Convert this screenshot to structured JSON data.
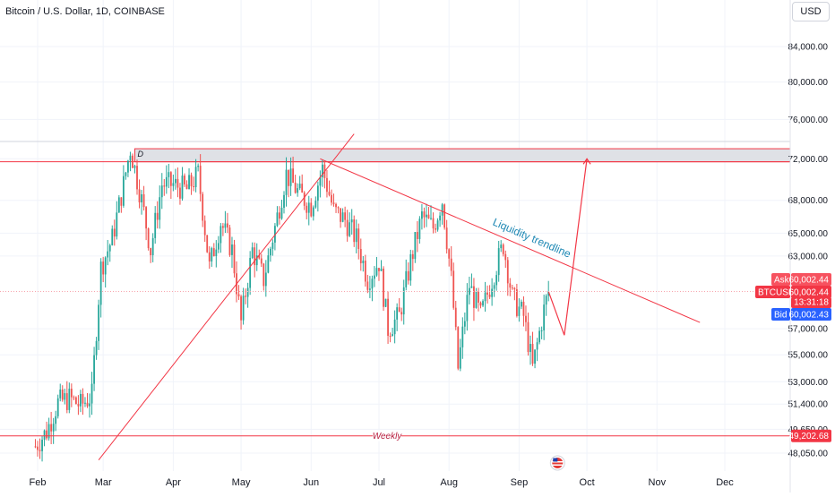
{
  "header": {
    "title": "Bitcoin / U.S. Dollar, 1D, COINBASE",
    "currency": "USD"
  },
  "chart_data": {
    "type": "candlestick",
    "title": "Bitcoin / U.S. Dollar, 1D, COINBASE",
    "ylim": [
      47500,
      86500
    ],
    "y_scale": "log",
    "y_ticks": [
      "84,000.00",
      "80,000.00",
      "76,000.00",
      "72,000.00",
      "68,000.00",
      "65,000.00",
      "63,000.00",
      "57,000.00",
      "55,000.00",
      "53,000.00",
      "51,400.00",
      "49,650.00",
      "48,050.00"
    ],
    "x_ticks": [
      "Feb",
      "Mar",
      "Apr",
      "May",
      "Jun",
      "Jul",
      "Aug",
      "Sep",
      "Oct",
      "Nov",
      "Dec"
    ],
    "closes": [
      {
        "date": "2024-01-31",
        "close": 48500
      },
      {
        "date": "2024-02-05",
        "close": 49500
      },
      {
        "date": "2024-02-10",
        "close": 51500
      },
      {
        "date": "2024-02-15",
        "close": 51800
      },
      {
        "date": "2024-02-20",
        "close": 51300
      },
      {
        "date": "2024-02-25",
        "close": 52000
      },
      {
        "date": "2024-02-29",
        "close": 62000
      },
      {
        "date": "2024-03-05",
        "close": 64500
      },
      {
        "date": "2024-03-10",
        "close": 69500
      },
      {
        "date": "2024-03-13",
        "close": 73000
      },
      {
        "date": "2024-03-18",
        "close": 68000
      },
      {
        "date": "2024-03-22",
        "close": 63500
      },
      {
        "date": "2024-03-27",
        "close": 69500
      },
      {
        "date": "2024-04-01",
        "close": 69500
      },
      {
        "date": "2024-04-07",
        "close": 69000
      },
      {
        "date": "2024-04-12",
        "close": 70500
      },
      {
        "date": "2024-04-17",
        "close": 62000
      },
      {
        "date": "2024-04-22",
        "close": 66000
      },
      {
        "date": "2024-04-27",
        "close": 63500
      },
      {
        "date": "2024-05-01",
        "close": 57500
      },
      {
        "date": "2024-05-06",
        "close": 63500
      },
      {
        "date": "2024-05-11",
        "close": 61000
      },
      {
        "date": "2024-05-16",
        "close": 65500
      },
      {
        "date": "2024-05-21",
        "close": 70500
      },
      {
        "date": "2024-05-27",
        "close": 68500
      },
      {
        "date": "2024-06-01",
        "close": 67500
      },
      {
        "date": "2024-06-06",
        "close": 71000
      },
      {
        "date": "2024-06-11",
        "close": 67000
      },
      {
        "date": "2024-06-16",
        "close": 66200
      },
      {
        "date": "2024-06-21",
        "close": 64500
      },
      {
        "date": "2024-06-26",
        "close": 61000
      },
      {
        "date": "2024-07-01",
        "close": 62500
      },
      {
        "date": "2024-07-05",
        "close": 57000
      },
      {
        "date": "2024-07-10",
        "close": 58000
      },
      {
        "date": "2024-07-15",
        "close": 62500
      },
      {
        "date": "2024-07-20",
        "close": 66500
      },
      {
        "date": "2024-07-25",
        "close": 65500
      },
      {
        "date": "2024-07-29",
        "close": 68000
      },
      {
        "date": "2024-08-02",
        "close": 61000
      },
      {
        "date": "2024-08-05",
        "close": 54000
      },
      {
        "date": "2024-08-10",
        "close": 60500
      },
      {
        "date": "2024-08-15",
        "close": 58000
      },
      {
        "date": "2024-08-20",
        "close": 61000
      },
      {
        "date": "2024-08-25",
        "close": 64000
      },
      {
        "date": "2024-08-29",
        "close": 59500
      },
      {
        "date": "2024-09-03",
        "close": 58000
      },
      {
        "date": "2024-09-07",
        "close": 54000
      },
      {
        "date": "2024-09-12",
        "close": 58500
      },
      {
        "date": "2024-09-14",
        "close": 60002
      }
    ],
    "zones": [
      {
        "label": "D",
        "from": 71700,
        "to": 73000
      }
    ],
    "horizontal_lines": [
      {
        "label": "Weekly",
        "price": 49202.68
      }
    ],
    "trendlines": [
      {
        "label": "",
        "from": {
          "date": "2024-02-28",
          "price": 47600
        },
        "to": {
          "date": "2024-06-20",
          "price": 74500
        }
      },
      {
        "label": "Liquidity trendline",
        "from": {
          "date": "2024-06-05",
          "price": 72000
        },
        "to": {
          "date": "2024-11-20",
          "price": 57500
        }
      }
    ],
    "projection": [
      {
        "date": "2024-09-14",
        "price": 60002
      },
      {
        "date": "2024-09-21",
        "price": 56500
      },
      {
        "date": "2024-10-01",
        "price": 72000
      }
    ],
    "price_labels": {
      "ask": {
        "label": "Ask",
        "value": "60,002.44"
      },
      "last": {
        "label": "BTCUSD",
        "value": "60,002.44",
        "timer": "13:31:18"
      },
      "bid": {
        "label": "Bid",
        "value": "60,002.43"
      },
      "weekly": {
        "value": "49,202.68"
      }
    },
    "colors": {
      "up": "#26a69a",
      "down": "#ef5350",
      "zone": "#dfe1e6",
      "line": "#f23645",
      "accent": "#2962ff",
      "label_text": "#1e88b4"
    }
  }
}
